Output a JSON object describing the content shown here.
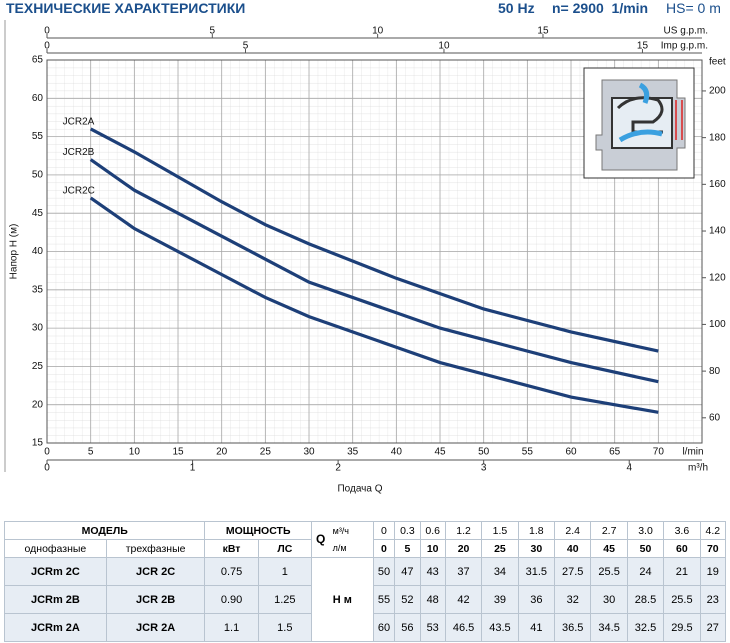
{
  "header": {
    "title": "ТЕХНИЧЕСКИЕ ХАРАКТЕРИСТИКИ",
    "freq": "50 Hz",
    "speed": "n= 2900  1/min",
    "hs": "HS= 0 m"
  },
  "chart_data": {
    "type": "line",
    "x_label": "l/min",
    "y_label": "Напор H (м)",
    "x_title": "Подача  Q",
    "xlim": [
      0,
      75
    ],
    "xticks": [
      0,
      5,
      10,
      15,
      20,
      25,
      30,
      35,
      40,
      45,
      50,
      55,
      60,
      65,
      70
    ],
    "ylim": [
      15,
      65
    ],
    "yticks": [
      15,
      20,
      25,
      30,
      35,
      40,
      45,
      50,
      55,
      60,
      65
    ],
    "y2_label": "feet",
    "y2lim": [
      49.21,
      213.25
    ],
    "y2ticks": [
      60,
      80,
      100,
      120,
      140,
      160,
      180,
      200
    ],
    "us_axis": {
      "label": "US g.p.m.",
      "xlim": [
        0,
        19.81
      ],
      "xticks": [
        0,
        5,
        10,
        15
      ]
    },
    "imp_axis": {
      "label": "Imp g.p.m.",
      "xlim": [
        0,
        16.5
      ],
      "xticks": [
        0,
        5,
        10,
        15
      ]
    },
    "m3h_axis": {
      "label": "m³/h",
      "xlim": [
        0,
        4.5
      ],
      "xticks": [
        0,
        1,
        2,
        3,
        4
      ]
    },
    "grid": true,
    "series": [
      {
        "name": "JCR2A",
        "color": "#1d3f78",
        "x": [
          5,
          10,
          20,
          25,
          30,
          40,
          45,
          50,
          60,
          70
        ],
        "values": [
          56,
          53,
          46.5,
          43.5,
          41,
          36.5,
          34.5,
          32.5,
          29.5,
          27
        ]
      },
      {
        "name": "JCR2B",
        "color": "#1d3f78",
        "x": [
          5,
          10,
          20,
          25,
          30,
          40,
          45,
          50,
          60,
          70
        ],
        "values": [
          52,
          48,
          42,
          39,
          36,
          32,
          30,
          28.5,
          25.5,
          23
        ]
      },
      {
        "name": "JCR2C",
        "color": "#1d3f78",
        "x": [
          5,
          10,
          20,
          25,
          30,
          40,
          45,
          50,
          60,
          70
        ],
        "values": [
          47,
          43,
          37,
          34,
          31.5,
          27.5,
          25.5,
          24,
          21,
          19
        ]
      }
    ]
  },
  "table": {
    "model": "МОДЕЛЬ",
    "power": "МОЩНОСТЬ",
    "q": "Q",
    "q_unit1": "м³/ч",
    "q_unit2": "л/м",
    "single": "однофазные",
    "three": "трехфазные",
    "kw": "кВт",
    "hp": "ЛС",
    "h": "H  м",
    "flow_m3h": [
      "0",
      "0.3",
      "0.6",
      "1.2",
      "1.5",
      "1.8",
      "2.4",
      "2.7",
      "3.0",
      "3.6",
      "4.2"
    ],
    "flow_lpm": [
      "0",
      "5",
      "10",
      "20",
      "25",
      "30",
      "40",
      "45",
      "50",
      "60",
      "70"
    ],
    "rows": [
      {
        "single": "JCRm 2C",
        "three": "JCR 2C",
        "kw": "0.75",
        "hp": "1",
        "head": [
          "50",
          "47",
          "43",
          "37",
          "34",
          "31.5",
          "27.5",
          "25.5",
          "24",
          "21",
          "19"
        ]
      },
      {
        "single": "JCRm 2B",
        "three": "JCR 2B",
        "kw": "0.90",
        "hp": "1.25",
        "head": [
          "55",
          "52",
          "48",
          "42",
          "39",
          "36",
          "32",
          "30",
          "28.5",
          "25.5",
          "23"
        ]
      },
      {
        "single": "JCRm 2A",
        "three": "JCR 2A",
        "kw": "1.1",
        "hp": "1.5",
        "head": [
          "60",
          "56",
          "53",
          "46.5",
          "43.5",
          "41",
          "36.5",
          "34.5",
          "32.5",
          "29.5",
          "27"
        ]
      }
    ]
  }
}
